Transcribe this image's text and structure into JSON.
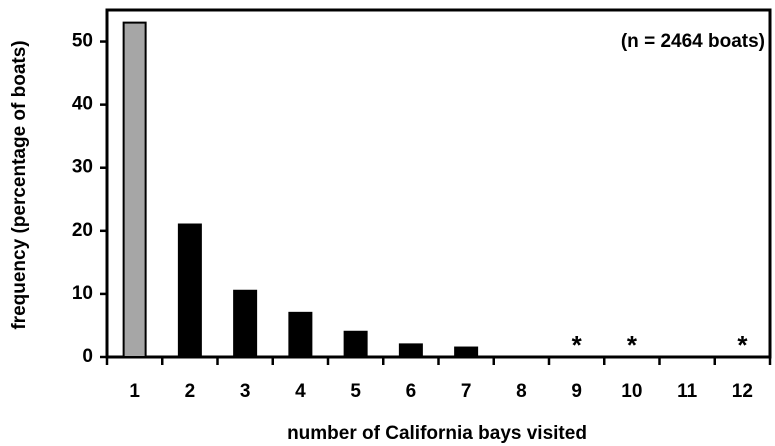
{
  "chart_data": {
    "type": "bar",
    "annotation": "(n = 2464 boats)",
    "x_label": "number of California bays visited",
    "y_label": "frequency (percentage of boats)",
    "categories": [
      "1",
      "2",
      "3",
      "4",
      "5",
      "6",
      "7",
      "8",
      "9",
      "10",
      "11",
      "12"
    ],
    "values": [
      53,
      21,
      10.5,
      7,
      4,
      2,
      1.5,
      0,
      0,
      0,
      0,
      0
    ],
    "colors": [
      "#a6a6a6",
      "#000000",
      "#000000",
      "#000000",
      "#000000",
      "#000000",
      "#000000",
      "#000000",
      "#000000",
      "#000000",
      "#000000",
      "#000000"
    ],
    "markers": [
      null,
      null,
      null,
      null,
      null,
      null,
      null,
      null,
      "*",
      "*",
      null,
      "*"
    ],
    "ylim": [
      0,
      55
    ],
    "yticks": [
      0,
      10,
      20,
      30,
      40,
      50
    ]
  }
}
